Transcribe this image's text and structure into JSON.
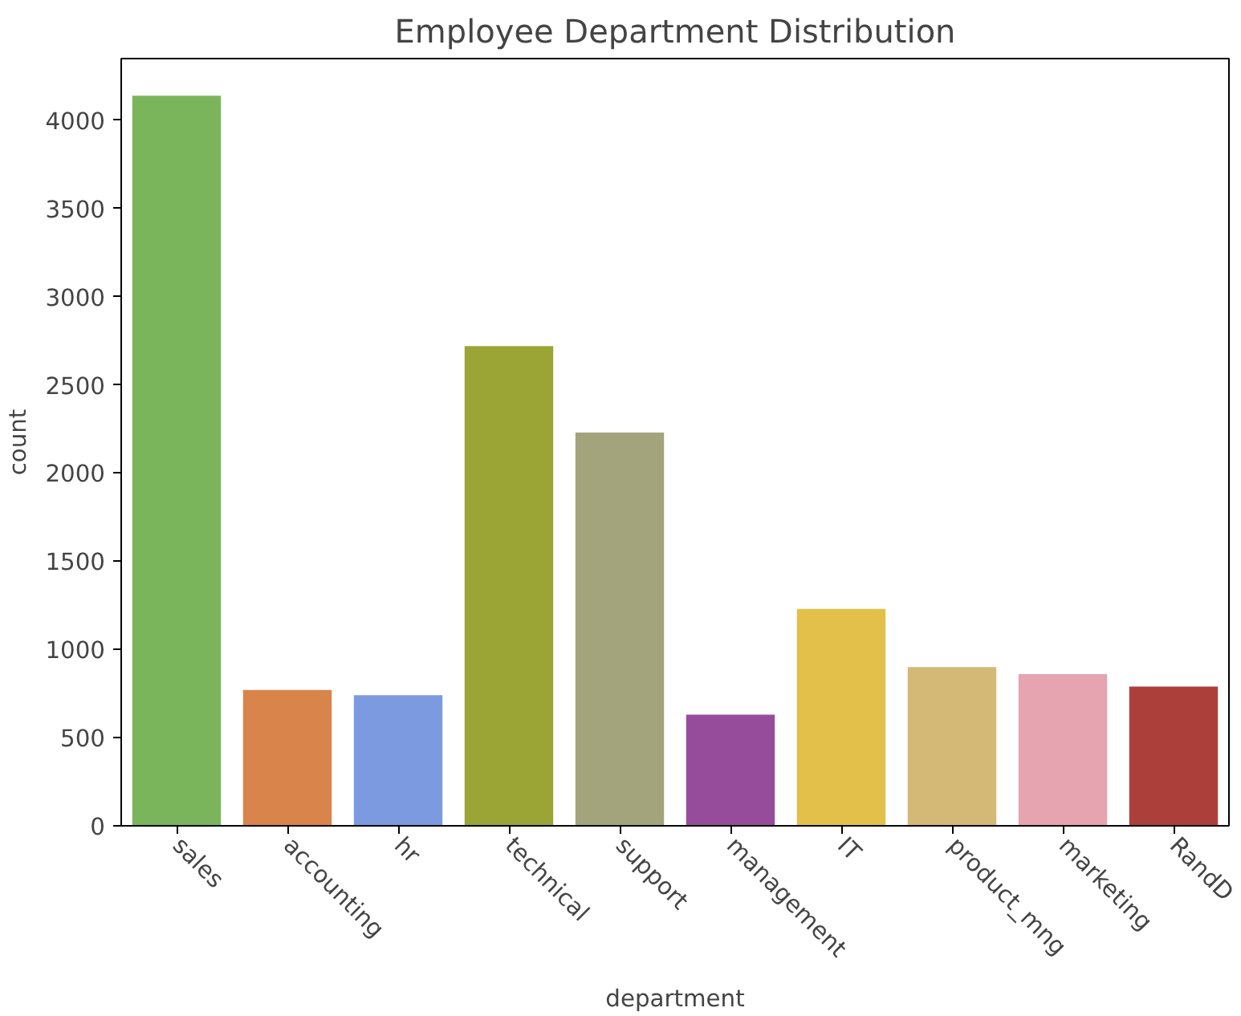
{
  "chart_data": {
    "type": "bar",
    "title": "Employee Department Distribution",
    "xlabel": "department",
    "ylabel": "count",
    "categories": [
      "sales",
      "accounting",
      "hr",
      "technical",
      "support",
      "management",
      "IT",
      "product_mng",
      "marketing",
      "RandD"
    ],
    "values": [
      4140,
      770,
      740,
      2720,
      2230,
      630,
      1230,
      900,
      860,
      790
    ],
    "colors": [
      "#7ab55c",
      "#d9844a",
      "#7b9ae0",
      "#9aa535",
      "#a3a37c",
      "#974c9b",
      "#e2c04a",
      "#d4b976",
      "#e5a4b0",
      "#ad3f3a"
    ],
    "ylim": [
      0,
      4350
    ],
    "yticks": [
      0,
      500,
      1000,
      1500,
      2000,
      2500,
      3000,
      3500,
      4000
    ],
    "grid": false
  }
}
